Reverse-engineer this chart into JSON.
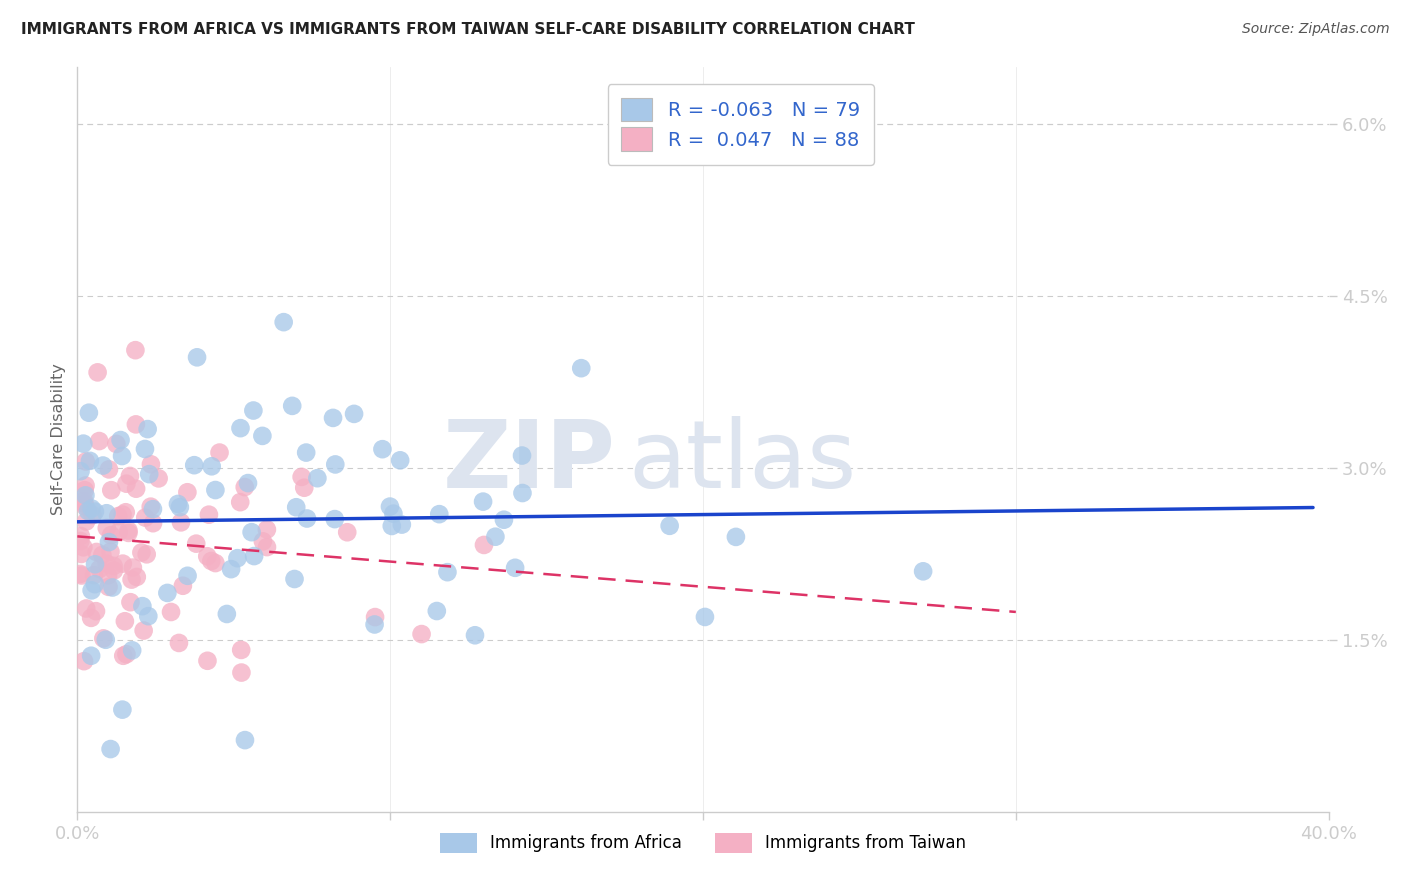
{
  "title": "IMMIGRANTS FROM AFRICA VS IMMIGRANTS FROM TAIWAN SELF-CARE DISABILITY CORRELATION CHART",
  "source": "Source: ZipAtlas.com",
  "ylabel": "Self-Care Disability",
  "xlim": [
    0.0,
    0.4
  ],
  "ylim": [
    0.0,
    0.065
  ],
  "ytick_vals": [
    0.015,
    0.03,
    0.045,
    0.06
  ],
  "ytick_labels": [
    "1.5%",
    "3.0%",
    "4.5%",
    "6.0%"
  ],
  "xtick_show": [
    0.0,
    0.4
  ],
  "xtick_labels": [
    "0.0%",
    "40.0%"
  ],
  "xtick_minor": [
    0.1,
    0.2,
    0.3
  ],
  "R_africa": -0.063,
  "N_africa": 79,
  "R_taiwan": 0.047,
  "N_taiwan": 88,
  "color_africa": "#a8c8e8",
  "color_taiwan": "#f4b0c4",
  "line_color_africa": "#1a44cc",
  "line_color_taiwan": "#dd3366",
  "watermark_zip": "ZIP",
  "watermark_atlas": "atlas",
  "watermark_color": "#dde4ef",
  "legend_text_color": "#3366cc",
  "tick_color": "#3366cc",
  "axis_spine_color": "#cccccc",
  "grid_color": "#cccccc",
  "title_color": "#222222",
  "source_color": "#555555",
  "taiwan_line_xmax": 0.3
}
